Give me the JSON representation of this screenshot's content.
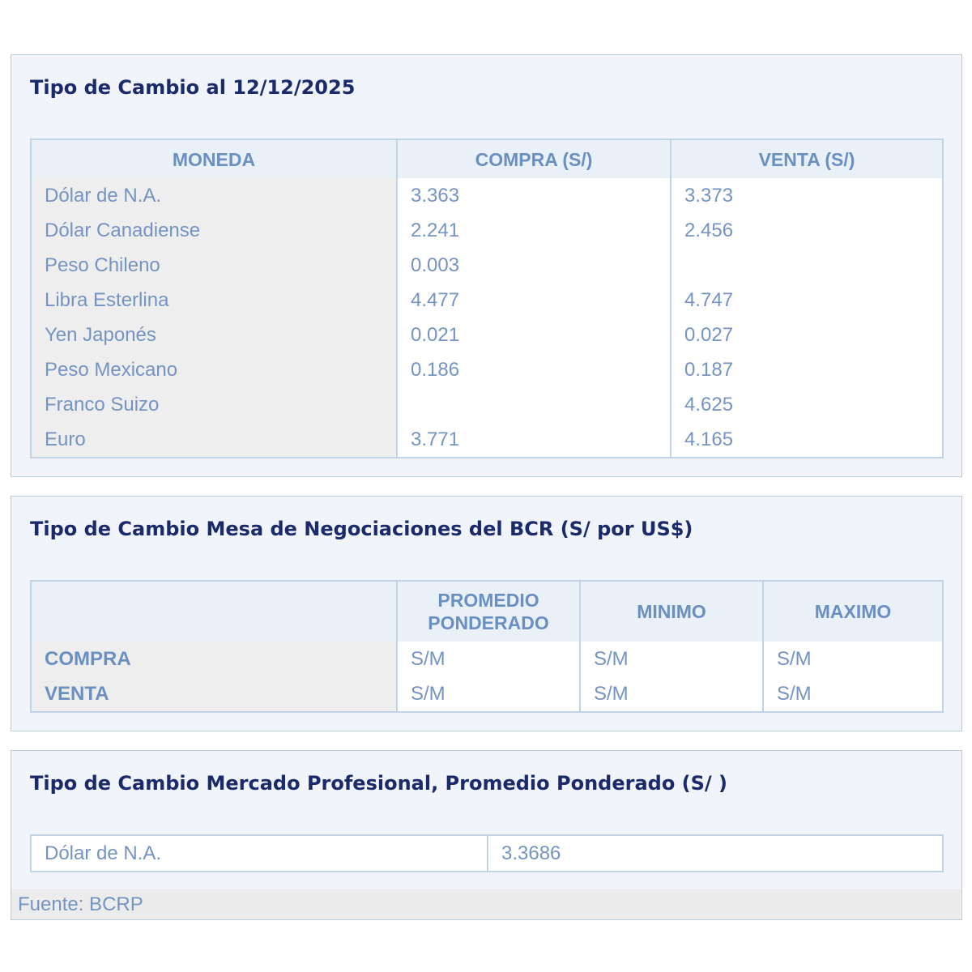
{
  "panel1": {
    "title": "Tipo de Cambio al 12/12/2025",
    "headers": [
      "MONEDA",
      "COMPRA (S/)",
      "VENTA (S/)"
    ],
    "rows": [
      [
        "Dólar de N.A.",
        "3.363",
        "3.373"
      ],
      [
        "Dólar Canadiense",
        "2.241",
        "2.456"
      ],
      [
        "Peso Chileno",
        "0.003",
        ""
      ],
      [
        "Libra Esterlina",
        "4.477",
        "4.747"
      ],
      [
        "Yen Japonés",
        "0.021",
        "0.027"
      ],
      [
        "Peso Mexicano",
        "0.186",
        "0.187"
      ],
      [
        "Franco Suizo",
        "",
        "4.625"
      ],
      [
        "Euro",
        "3.771",
        "4.165"
      ]
    ]
  },
  "panel2": {
    "title": "Tipo de Cambio Mesa de Negociaciones del BCR (S/ por US$)",
    "headers": [
      "",
      "PROMEDIO PONDERADO",
      "MINIMO",
      "MAXIMO"
    ],
    "rows": [
      [
        "COMPRA",
        "S/M",
        "S/M",
        "S/M"
      ],
      [
        "VENTA",
        "S/M",
        "S/M",
        "S/M"
      ]
    ]
  },
  "panel3": {
    "title": "Tipo de Cambio Mercado Profesional, Promedio Ponderado (S/ )",
    "rows": [
      [
        "Dólar de N.A.",
        "3.3686"
      ]
    ],
    "footer": "Fuente: BCRP"
  }
}
